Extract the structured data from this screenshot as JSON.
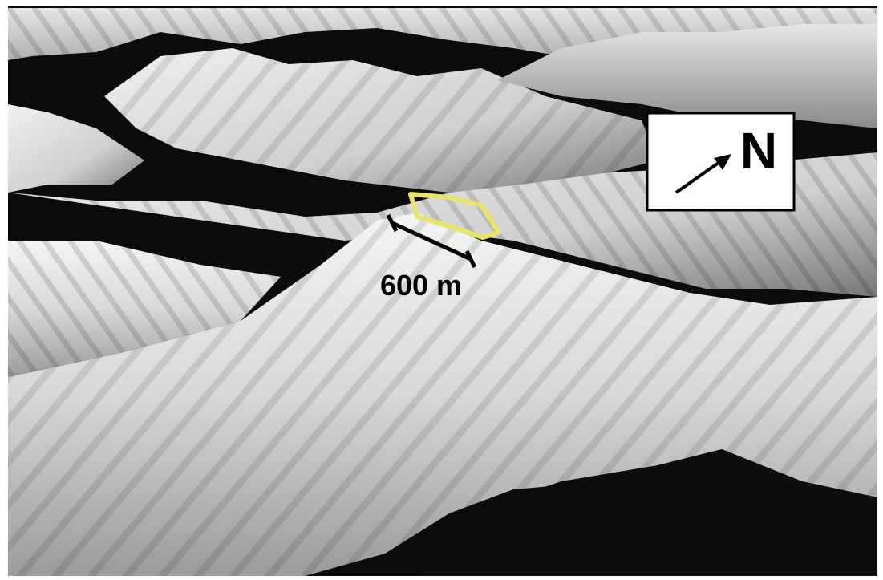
{
  "annotations": {
    "scale_label": "600 m",
    "north_label": "N"
  }
}
